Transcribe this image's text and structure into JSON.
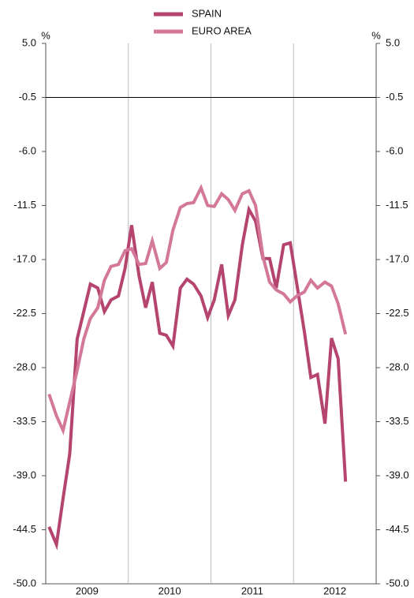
{
  "chart_data": {
    "type": "line",
    "x": [
      2009.04,
      2009.13,
      2009.21,
      2009.29,
      2009.38,
      2009.46,
      2009.54,
      2009.63,
      2009.71,
      2009.79,
      2009.88,
      2009.96,
      2010.04,
      2010.13,
      2010.21,
      2010.29,
      2010.38,
      2010.46,
      2010.54,
      2010.63,
      2010.71,
      2010.79,
      2010.88,
      2010.96,
      2011.04,
      2011.13,
      2011.21,
      2011.29,
      2011.38,
      2011.46,
      2011.54,
      2011.63,
      2011.71,
      2011.79,
      2011.88,
      2011.96,
      2012.04,
      2012.13,
      2012.21,
      2012.29,
      2012.38,
      2012.46,
      2012.54,
      2012.63
    ],
    "series": [
      {
        "name": "SPAIN",
        "color": "#b5446e",
        "values": [
          -44.2,
          -46.0,
          -41.3,
          -36.8,
          -25.1,
          -22.3,
          -19.5,
          -19.9,
          -22.3,
          -21.1,
          -20.7,
          -17.9,
          -13.5,
          -18.7,
          -21.9,
          -19.3,
          -24.5,
          -24.7,
          -25.8,
          -19.9,
          -19.0,
          -19.5,
          -20.7,
          -22.9,
          -21.1,
          -17.5,
          -22.7,
          -21.1,
          -15.5,
          -11.9,
          -13.1,
          -16.9,
          -16.9,
          -19.9,
          -15.5,
          -15.3,
          -19.5,
          -24.3,
          -29.0,
          -28.7,
          -33.7,
          -25.0,
          -27.1,
          -39.6
        ]
      },
      {
        "name": "EURO AREA",
        "color": "#d4789a",
        "values": [
          -30.7,
          -32.9,
          -34.4,
          -31.5,
          -28.3,
          -25.1,
          -23.0,
          -21.9,
          -19.1,
          -17.7,
          -17.5,
          -16.1,
          -15.9,
          -17.5,
          -17.4,
          -15.1,
          -17.9,
          -17.3,
          -14.0,
          -11.7,
          -11.3,
          -11.2,
          -9.7,
          -11.5,
          -11.6,
          -10.3,
          -10.9,
          -12.0,
          -10.3,
          -10.0,
          -11.5,
          -16.7,
          -19.3,
          -20.1,
          -20.5,
          -21.3,
          -20.7,
          -20.3,
          -19.1,
          -19.9,
          -19.3,
          -19.7,
          -21.5,
          -24.6
        ]
      }
    ],
    "xlim": [
      2009,
      2013
    ],
    "xticks": [
      2010,
      2011,
      2012
    ],
    "xlabels": [
      {
        "value": 2009.5,
        "label": "2009"
      },
      {
        "value": 2010.5,
        "label": "2010"
      },
      {
        "value": 2011.5,
        "label": "2011"
      },
      {
        "value": 2012.5,
        "label": "2012"
      }
    ],
    "ylim": [
      -50,
      5
    ],
    "yticks": [
      {
        "value": 5,
        "label": "5.0"
      },
      -0.5,
      {
        "value": -6,
        "label": "-6.0"
      },
      -11.5,
      {
        "value": -17,
        "label": "-17.0"
      },
      -22.5,
      {
        "value": -28,
        "label": "-28.0"
      },
      -33.5,
      {
        "value": -39,
        "label": "-39.0"
      },
      -44.5,
      {
        "value": -50,
        "label": "-50.0"
      }
    ],
    "y_unit": "%",
    "hline": -0.5
  }
}
